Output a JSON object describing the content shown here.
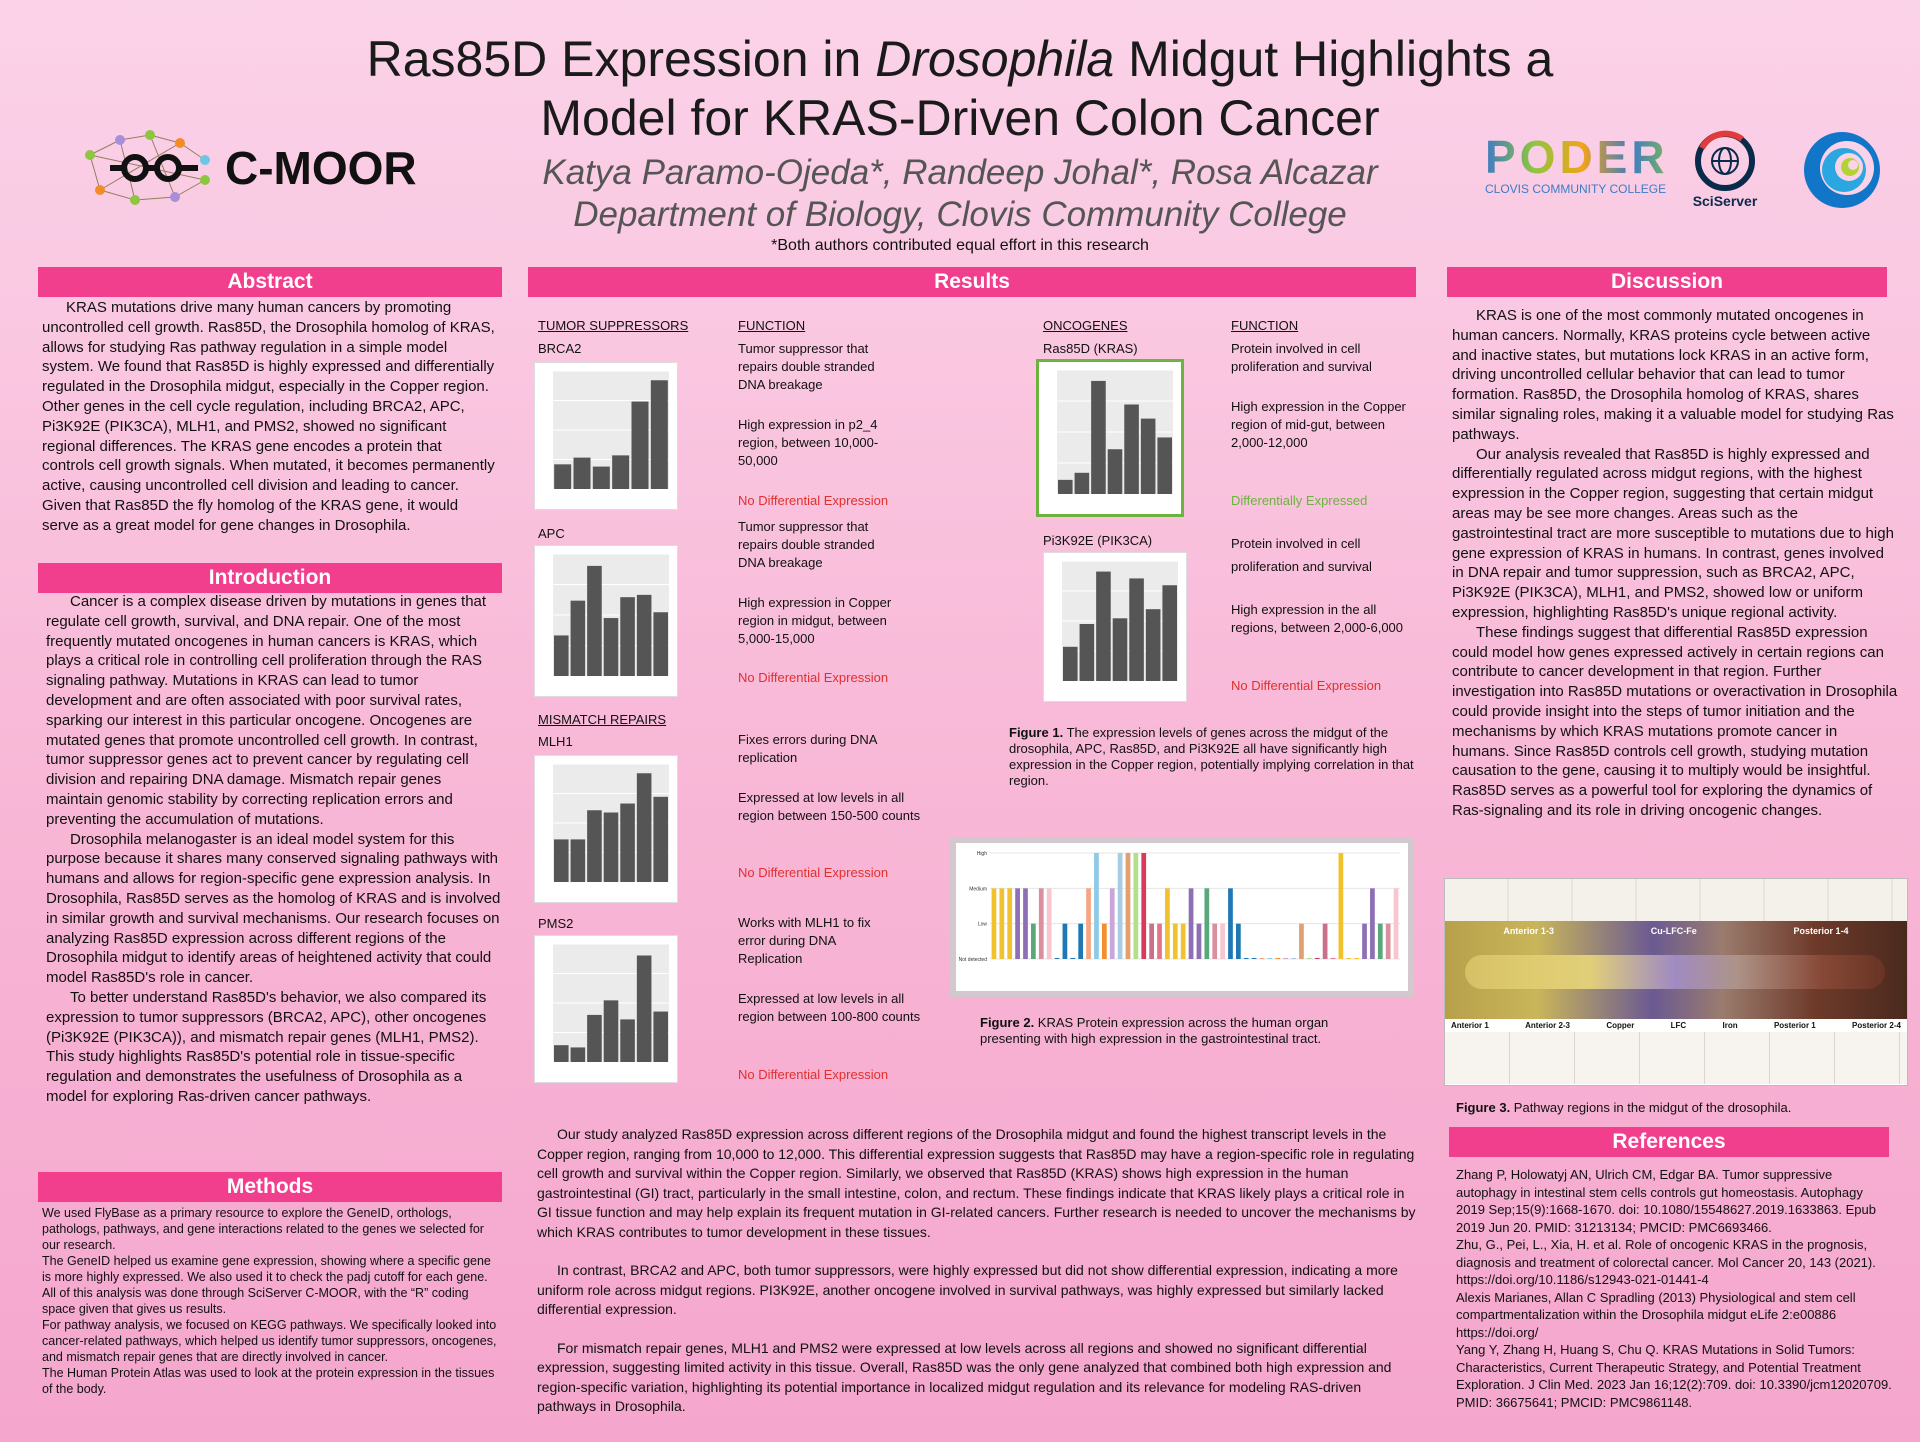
{
  "title_line1_a": "Ras85D Expression in ",
  "title_line1_italic": "Drosophila",
  "title_line1_b": " Midgut Highlights a",
  "title_line2": "Model for KRAS-Driven Colon Cancer",
  "authors": "Katya Paramo-Ojeda*, Randeep Johal*, Rosa Alcazar",
  "department": "Department of Biology, Clovis Community College",
  "equal_effort_note": "*Both authors contributed equal effort in this research",
  "logos": {
    "cmoor": "C-MOOR",
    "poder": "PODER",
    "poder_sub": "CLOVIS COMMUNITY COLLEGE",
    "sciserver": "SciServer"
  },
  "abstract": {
    "heading": "Abstract",
    "text": "KRAS mutations drive many human cancers by promoting uncontrolled cell growth. Ras85D, the Drosophila homolog of KRAS, allows for studying Ras pathway regulation in a simple model system. We found that Ras85D is highly expressed and differentially regulated in the Drosophila midgut, especially in the Copper region. Other genes in the cell cycle regulation, including BRCA2, APC, Pi3K92E (PIK3CA), MLH1, and PMS2, showed no significant regional differences. The KRAS gene encodes a protein that controls cell growth signals. When mutated, it becomes permanently active, causing uncontrolled cell division and leading to cancer. Given that Ras85D the fly homolog of the KRAS gene, it would serve as a great model for gene changes in Drosophila."
  },
  "introduction": {
    "heading": "Introduction",
    "paragraphs": [
      "Cancer is a complex disease driven by mutations in genes that regulate cell growth, survival, and DNA repair. One of the most frequently mutated oncogenes in human cancers is KRAS, which plays a critical role in controlling cell proliferation through the RAS signaling pathway. Mutations in KRAS can lead to tumor development and are often associated with poor survival rates, sparking our interest in this particular oncogene. Oncogenes are mutated genes that promote uncontrolled cell growth. In contrast, tumor suppressor genes act to prevent cancer by regulating cell division and repairing DNA damage. Mismatch repair genes maintain genomic stability by correcting replication errors and preventing the accumulation of mutations.",
      "Drosophila melanogaster is an ideal model system for this purpose because it shares many conserved signaling pathways with humans and allows for region-specific gene expression analysis. In Drosophila, Ras85D serves as the homolog of KRAS and is involved in similar growth and survival mechanisms. Our research focuses on analyzing Ras85D expression across different regions of the Drosophila midgut to identify areas of heightened activity that could model Ras85D's role in cancer.",
      "To better understand Ras85D's behavior, we also compared its expression to tumor suppressors (BRCA2, APC), other oncogenes (Pi3K92E (PIK3CA)), and mismatch repair genes (MLH1, PMS2). This study highlights Ras85D's potential role in tissue-specific regulation and demonstrates the usefulness of Drosophila as a model for exploring Ras-driven cancer pathways."
    ]
  },
  "methods": {
    "heading": "Methods",
    "paragraphs": [
      "We used FlyBase as a primary resource to explore the GeneID, orthologs, pathologs, pathways, and gene interactions related to the genes we selected for our research.",
      "The GeneID helped us examine gene expression, showing where a specific gene is more highly expressed. We also used it to check the padj cutoff for each gene. All of this analysis was done through SciServer C-MOOR, with the “R” coding space given that gives us results.",
      "For pathway analysis, we focused on KEGG pathways. We specifically looked into cancer-related pathways, which helped us identify tumor suppressors, oncogenes, and mismatch repair genes that are directly involved in cancer.",
      "The Human Protein Atlas was used to look at the protein expression in the tissues of the body."
    ]
  },
  "results": {
    "heading": "Results",
    "labels": {
      "tumor_suppressors": "TUMOR SUPPRESSORS",
      "function": "FUNCTION",
      "mismatch_repairs": "MISMATCH REPAIRS",
      "oncogenes": "ONCOGENES"
    },
    "genes": {
      "brca2": {
        "name": "BRCA2",
        "func1": "Tumor suppressor that repairs double stranded DNA breakage",
        "func2": "High expression in p2_4 region, between 10,000-50,000",
        "status": "No Differential Expression"
      },
      "apc": {
        "name": "APC",
        "func1": "Tumor suppressor that repairs double stranded DNA breakage",
        "func2": "High expression in Copper region in midgut, between 5,000-15,000",
        "status": "No Differential Expression"
      },
      "mlh1": {
        "name": "MLH1",
        "func1": "Fixes errors during DNA replication",
        "func2": "Expressed at low levels in all region between 150-500 counts",
        "status": "No Differential Expression"
      },
      "pms2": {
        "name": "PMS2",
        "func1": "Works with MLH1 to fix error during DNA Replication",
        "func2": "Expressed at low levels in all region between 100-800 counts",
        "status": "No Differential Expression"
      },
      "ras85d": {
        "name": "Ras85D (KRAS)",
        "func1": "Protein involved in cell proliferation and survival",
        "func2": "High expression in the Copper region of mid-gut, between 2,000-12,000",
        "status": "Differentially Expressed"
      },
      "pi3k92e": {
        "name": "Pi3K92E (PIK3CA)",
        "func1": "Protein involved in cell proliferation and survival",
        "func2": "High expression in the all regions, between 2,000-6,000",
        "status": "No Differential Expression"
      }
    },
    "figure1_bold": "Figure 1.",
    "figure1_text": " The expression levels of genes across the midgut of the drosophila, APC, Ras85D, and Pi3K92E all have significantly high expression in the Copper region, potentially implying correlation in that region.",
    "figure2_bold": "Figure 2.",
    "figure2_text": " KRAS Protein expression across the human organ presenting with high expression in the gastrointestinal tract.",
    "paragraphs": [
      "Our study analyzed Ras85D expression across different regions of the Drosophila midgut and found the highest transcript levels in the Copper region, ranging from 10,000 to 12,000. This differential expression suggests that Ras85D may have a region-specific role in regulating cell growth and survival within the Copper region. Similarly, we observed that Ras85D (KRAS) shows high expression in the human gastrointestinal (GI) tract, particularly in the small intestine, colon, and rectum. These findings indicate that KRAS likely plays a critical role in GI tissue function and may help explain its frequent mutation in GI-related cancers. Further research is needed to uncover the mechanisms by which KRAS contributes to tumor development in these tissues.",
      "In contrast, BRCA2 and APC, both tumor suppressors, were highly expressed but did not show differential expression, indicating a more uniform role across midgut regions. PI3K92E, another oncogene involved in survival pathways, was highly expressed but similarly lacked differential expression.",
      "For mismatch repair genes, MLH1 and PMS2 were expressed at low levels across all regions and showed no significant differential expression, suggesting limited activity in this tissue. Overall, Ras85D was the only gene analyzed that combined both high expression and region-specific variation, highlighting its potential importance in localized midgut regulation and its relevance for modeling RAS-driven pathways in Drosophila."
    ]
  },
  "discussion": {
    "heading": "Discussion",
    "paragraphs": [
      "KRAS is one of the most commonly mutated oncogenes in human cancers. Normally, KRAS proteins cycle between active and inactive states, but mutations lock KRAS in an active form, driving uncontrolled cellular behavior that can lead to tumor formation. Ras85D, the Drosophila homolog of KRAS, shares similar signaling roles, making it a valuable model for studying Ras pathways.",
      "Our analysis revealed that Ras85D is highly expressed and differentially regulated across midgut regions, with the highest expression in the Copper region, suggesting that certain midgut areas may be see more changes. Areas such as the gastrointestinal tract are more susceptible to mutations due to high gene expression of KRAS in humans. In contrast, genes involved in DNA repair and tumor suppression, such as BRCA2, APC, Pi3K92E (PIK3CA), MLH1, and PMS2, showed low or uniform expression, highlighting Ras85D's unique regional activity.",
      "These findings suggest that differential Ras85D expression could model how genes expressed actively in certain regions can contribute to cancer development in that region. Further investigation into Ras85D mutations or overactivation in Drosophila could provide insight into the steps of tumor initiation and the mechanisms by which KRAS mutations promote cancer in humans. Since Ras85D controls cell growth, studying mutation causation to the gene, causing it to multiply would be insightful. Ras85D serves as a powerful tool for exploring the dynamics of Ras-signaling and its role in driving oncogenic changes."
    ],
    "figure3_bold": "Figure 3.",
    "figure3_text": " Pathway regions in the midgut of the drosophila.",
    "fig3_regions": [
      "Anterior 1-3",
      "Cu-LFC-Fe",
      "Posterior 1-4"
    ],
    "fig3_sublabels": [
      "Anterior 1",
      "Anterior 2-3",
      "Copper",
      "LFC",
      "Iron",
      "Posterior 1",
      "Posterior 2-4"
    ]
  },
  "references": {
    "heading": "References",
    "items": [
      "Zhang P, Holowatyj AN, Ulrich CM, Edgar BA. Tumor suppressive autophagy in intestinal stem cells controls gut homeostasis. Autophagy 2019 Sep;15(9):1668-1670. doi: 10.1080/15548627.2019.1633863. Epub 2019 Jun 20. PMID: 31213134; PMCID: PMC6693466.",
      "Zhu, G., Pei, L., Xia, H. et al. Role of oncogenic KRAS in the prognosis, diagnosis and treatment of colorectal cancer. Mol Cancer 20, 143 (2021). https://doi.org/10.1186/s12943-021-01441-4",
      "Alexis Marianes, Allan C Spradling (2013) Physiological and stem cell compartmentalization within the Drosophila midgut eLife 2:e00886 https://doi.org/",
      " Yang Y, Zhang H, Huang S, Chu Q. KRAS Mutations in Solid Tumors: Characteristics, Current Therapeutic Strategy, and Potential Treatment Exploration. J Clin Med. 2023 Jan 16;12(2):709. doi: 10.3390/jcm12020709. PMID: 36675641; PMCID: PMC9861148."
    ]
  },
  "chart_data": [
    {
      "type": "bar",
      "name": "BRCA2",
      "values": [
        0.22,
        0.28,
        0.2,
        0.3,
        0.78,
        0.97
      ]
    },
    {
      "type": "bar",
      "name": "APC",
      "values": [
        0.35,
        0.65,
        0.95,
        0.5,
        0.68,
        0.7,
        0.55
      ]
    },
    {
      "type": "bar",
      "name": "MLH1",
      "values": [
        0.38,
        0.38,
        0.64,
        0.62,
        0.7,
        0.97,
        0.76
      ]
    },
    {
      "type": "bar",
      "name": "PMS2",
      "values": [
        0.15,
        0.13,
        0.42,
        0.55,
        0.38,
        0.95,
        0.45
      ]
    },
    {
      "type": "bar",
      "name": "Ras85D (KRAS)",
      "values": [
        0.12,
        0.18,
        0.96,
        0.38,
        0.76,
        0.64,
        0.48
      ]
    },
    {
      "type": "bar",
      "name": "Pi3K92E (PIK3CA)",
      "values": [
        0.3,
        0.5,
        0.96,
        0.55,
        0.9,
        0.63,
        0.84
      ]
    },
    {
      "type": "bar",
      "name": "KRAS protein",
      "ylevels": [
        "Not detected",
        "Low",
        "Medium",
        "High"
      ],
      "values": [
        2,
        2,
        2,
        2,
        2,
        1,
        2,
        2,
        0,
        1,
        0,
        1,
        2,
        3,
        1,
        2,
        3,
        3,
        3,
        3,
        1,
        1,
        2,
        1,
        1,
        2,
        1,
        2,
        1,
        1,
        2,
        1,
        0,
        0,
        0,
        0,
        0,
        0,
        0,
        1,
        0,
        0,
        1,
        0,
        3,
        0,
        0,
        1,
        2,
        1,
        1,
        2
      ]
    }
  ]
}
